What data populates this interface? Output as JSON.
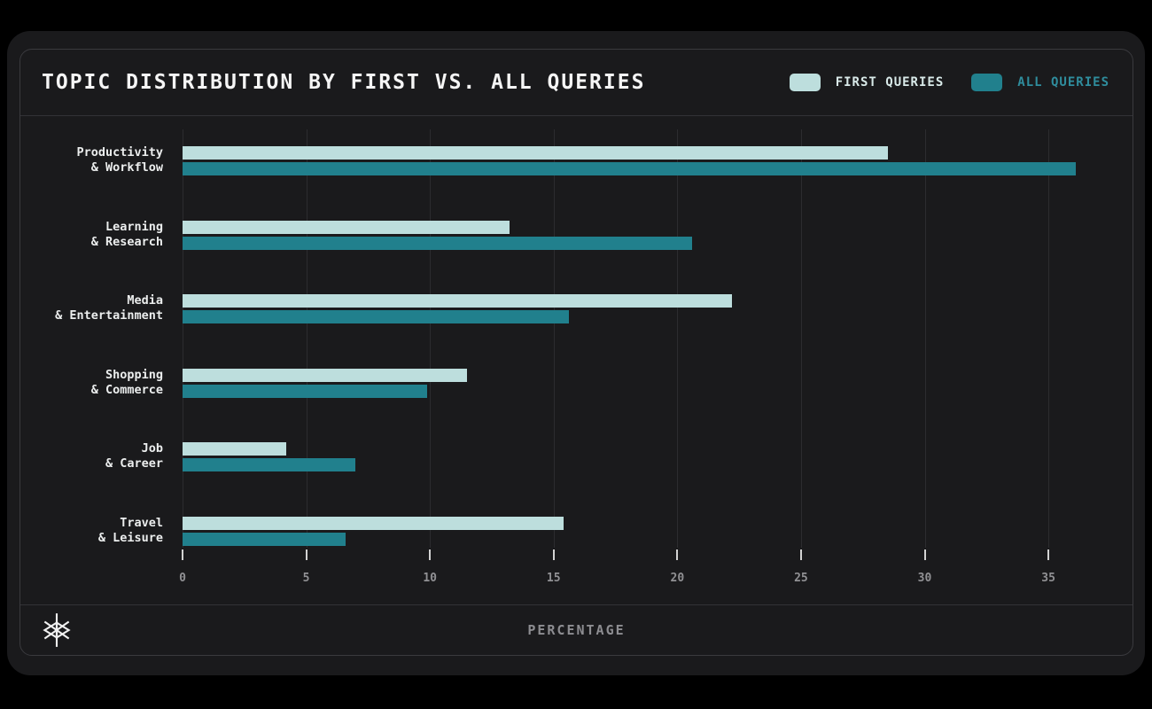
{
  "header": {
    "title": "TOPIC DISTRIBUTION BY FIRST VS. ALL QUERIES"
  },
  "footer": {
    "xlabel": "PERCENTAGE",
    "logo": "starburst-logo"
  },
  "colors": {
    "page_background": "#000000",
    "card_background": "#1a1a1c",
    "frame_border": "#3a3a3e",
    "gridline": "#2c2c2f",
    "first_queries": "#bddedd",
    "all_queries": "#21808d",
    "first_queries_label": "#d9eae9",
    "all_queries_label": "#2f8d9d",
    "title_text": "#f5f5f5",
    "muted_text": "#919194"
  },
  "chart_data": {
    "type": "bar",
    "orientation": "horizontal",
    "title": "TOPIC DISTRIBUTION BY FIRST VS. ALL QUERIES",
    "xlabel": "PERCENTAGE",
    "xlim": [
      0,
      38.4
    ],
    "xticks": [
      0,
      5,
      10,
      15,
      20,
      25,
      30,
      35
    ],
    "grid": true,
    "legend_position": "top-right",
    "categories": [
      {
        "line1": "Productivity",
        "line2": "& Workflow"
      },
      {
        "line1": "Learning",
        "line2": "& Research"
      },
      {
        "line1": "Media",
        "line2": "& Entertainment"
      },
      {
        "line1": "Shopping",
        "line2": "& Commerce"
      },
      {
        "line1": "Job",
        "line2": "& Career"
      },
      {
        "line1": "Travel",
        "line2": "& Leisure"
      }
    ],
    "series": [
      {
        "name": "FIRST QUERIES",
        "color": "#bddedd",
        "label_color": "#d9eae9",
        "values": [
          28.5,
          13.2,
          22.2,
          11.5,
          4.2,
          15.4
        ]
      },
      {
        "name": "ALL QUERIES",
        "color": "#21808d",
        "label_color": "#2f8d9d",
        "values": [
          36.1,
          20.6,
          15.6,
          9.9,
          7.0,
          6.6
        ]
      }
    ]
  }
}
